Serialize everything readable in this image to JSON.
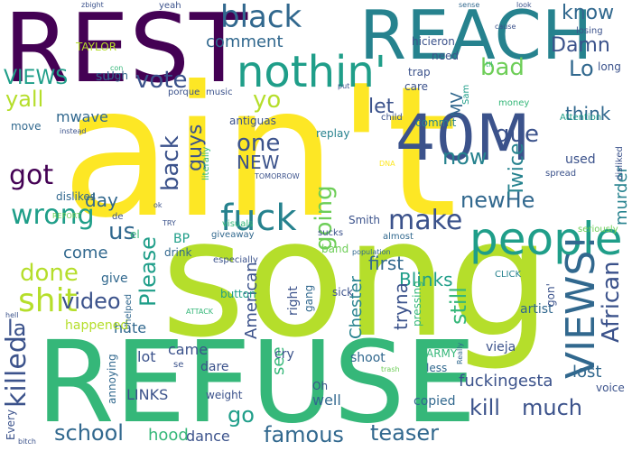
{
  "palette": {
    "purple": "#440154",
    "indigo": "#3b528b",
    "slate": "#31688e",
    "teal": "#26828e",
    "sea": "#1f9e89",
    "green": "#35b779",
    "lime": "#6ece58",
    "chartreuse": "#b5de2b",
    "yellow": "#fde725",
    "olive": "#d8e219"
  },
  "words": [
    {
      "text": "ain't",
      "color": "#fde725"
    },
    {
      "text": "song",
      "color": "#b5de2b"
    },
    {
      "text": "REFUSE",
      "color": "#35b779"
    },
    {
      "text": "REST",
      "color": "#440154"
    },
    {
      "text": "REACH",
      "color": "#26828e"
    },
    {
      "text": "40M",
      "color": "#3b528b"
    },
    {
      "text": "nothin'",
      "color": "#1f9e89"
    },
    {
      "text": "people",
      "color": "#1f9e89"
    },
    {
      "text": "VIEWS!",
      "color": "#31688e"
    },
    {
      "text": "African",
      "color": "#3b528b"
    },
    {
      "text": "fuck",
      "color": "#26828e"
    },
    {
      "text": "black",
      "color": "#31688e"
    },
    {
      "text": "shit",
      "color": "#b5de2b"
    },
    {
      "text": "wrong",
      "color": "#1f9e89"
    },
    {
      "text": "make",
      "color": "#3b528b"
    },
    {
      "text": "killed",
      "color": "#3b528b"
    },
    {
      "text": "done",
      "color": "#b5de2b"
    },
    {
      "text": "school",
      "color": "#31688e"
    },
    {
      "text": "famous",
      "color": "#31688e"
    },
    {
      "text": "teaser",
      "color": "#31688e"
    },
    {
      "text": "kill",
      "color": "#3b528b"
    },
    {
      "text": "much",
      "color": "#3b528b"
    },
    {
      "text": "newHe",
      "color": "#31688e"
    },
    {
      "text": "going",
      "color": "#6ece58"
    },
    {
      "text": "back",
      "color": "#3b528b"
    },
    {
      "text": "guys",
      "color": "#3b528b"
    },
    {
      "text": "Please",
      "color": "#1f9e89"
    },
    {
      "text": "video",
      "color": "#3b528b"
    },
    {
      "text": "yall",
      "color": "#b5de2b"
    },
    {
      "text": "got",
      "color": "#440154"
    },
    {
      "text": "bad",
      "color": "#6ece58"
    },
    {
      "text": "vote",
      "color": "#3b528b"
    },
    {
      "text": "yo",
      "color": "#b5de2b"
    },
    {
      "text": "let",
      "color": "#3b528b"
    },
    {
      "text": "one",
      "color": "#3b528b"
    },
    {
      "text": "que",
      "color": "#3b528b"
    },
    {
      "text": "now",
      "color": "#26828e"
    },
    {
      "text": "Twice",
      "color": "#26828e"
    },
    {
      "text": "MV",
      "color": "#31688e"
    },
    {
      "text": "Lo",
      "color": "#31688e"
    },
    {
      "text": "Damn",
      "color": "#3b528b"
    },
    {
      "text": "know",
      "color": "#31688e"
    },
    {
      "text": "think",
      "color": "#31688e"
    },
    {
      "text": "murder",
      "color": "#26828e"
    },
    {
      "text": "VIEWS",
      "color": "#1f9e89"
    },
    {
      "text": "comment",
      "color": "#31688e"
    },
    {
      "text": "go",
      "color": "#1f9e89"
    },
    {
      "text": "la",
      "color": "#3b528b"
    },
    {
      "text": "us",
      "color": "#31688e"
    },
    {
      "text": "come",
      "color": "#31688e"
    },
    {
      "text": "day",
      "color": "#31688e"
    },
    {
      "text": "NEW",
      "color": "#3b528b"
    },
    {
      "text": "first",
      "color": "#31688e"
    },
    {
      "text": "still",
      "color": "#35b779"
    },
    {
      "text": "Blinks",
      "color": "#1f9e89"
    },
    {
      "text": "tryna",
      "color": "#3b528b"
    },
    {
      "text": "Chester",
      "color": "#26828e"
    },
    {
      "text": "American",
      "color": "#3b528b"
    },
    {
      "text": "see",
      "color": "#35b779"
    },
    {
      "text": "well",
      "color": "#31688e"
    },
    {
      "text": "lost",
      "color": "#31688e"
    },
    {
      "text": "fuckingesta",
      "color": "#3b528b"
    },
    {
      "text": "copied",
      "color": "#31688e"
    },
    {
      "text": "hate",
      "color": "#31688e"
    },
    {
      "text": "LINKS",
      "color": "#3b528b"
    },
    {
      "text": "hood",
      "color": "#35b779"
    },
    {
      "text": "dance",
      "color": "#3b528b"
    },
    {
      "text": "give",
      "color": "#31688e"
    },
    {
      "text": "came",
      "color": "#3b528b"
    },
    {
      "text": "lot",
      "color": "#3b528b"
    },
    {
      "text": "dare",
      "color": "#3b528b"
    },
    {
      "text": "shoot",
      "color": "#31688e"
    },
    {
      "text": "mwave",
      "color": "#31688e"
    },
    {
      "text": "happened",
      "color": "#b5de2b"
    },
    {
      "text": "right",
      "color": "#3b528b"
    },
    {
      "text": "gang",
      "color": "#31688e"
    },
    {
      "text": "TAYLOR",
      "color": "#b5de2b"
    },
    {
      "text": "Ugh",
      "color": "#31688e"
    },
    {
      "text": "su",
      "color": "#31688e"
    },
    {
      "text": "move",
      "color": "#31688e"
    },
    {
      "text": "antiguas",
      "color": "#3b528b"
    },
    {
      "text": "music",
      "color": "#3b528b"
    },
    {
      "text": "porque",
      "color": "#3b528b"
    },
    {
      "text": "hicieron",
      "color": "#3b528b"
    },
    {
      "text": "need",
      "color": "#3b528b"
    },
    {
      "text": "trap",
      "color": "#3b528b"
    },
    {
      "text": "care",
      "color": "#3b528b"
    },
    {
      "text": "losing",
      "color": "#3b528b"
    },
    {
      "text": "long",
      "color": "#3b528b"
    },
    {
      "text": "Attention",
      "color": "#1f9e89"
    },
    {
      "text": "used",
      "color": "#3b528b"
    },
    {
      "text": "disliked",
      "color": "#3b528b"
    },
    {
      "text": "seriously",
      "color": "#6ece58"
    },
    {
      "text": "spread",
      "color": "#3b528b"
    },
    {
      "text": "commit",
      "color": "#26828e"
    },
    {
      "text": "replay",
      "color": "#26828e"
    },
    {
      "text": "Sam",
      "color": "#1f9e89"
    },
    {
      "text": "dislikes",
      "color": "#31688e"
    },
    {
      "text": "BP",
      "color": "#1f9e89"
    },
    {
      "text": "drink",
      "color": "#31688e"
    },
    {
      "text": "band",
      "color": "#6ece58"
    },
    {
      "text": "sick",
      "color": "#3b528b"
    },
    {
      "text": "sucks",
      "color": "#3b528b"
    },
    {
      "text": "especially",
      "color": "#3b528b"
    },
    {
      "text": "almost",
      "color": "#31688e"
    },
    {
      "text": "giveaway",
      "color": "#31688e"
    },
    {
      "text": "visuals",
      "color": "#35b779"
    },
    {
      "text": "Smith",
      "color": "#3b528b"
    },
    {
      "text": "population",
      "color": "#31688e"
    },
    {
      "text": "artist",
      "color": "#31688e"
    },
    {
      "text": "button",
      "color": "#1f9e89"
    },
    {
      "text": "helped",
      "color": "#31688e"
    },
    {
      "text": "pressing",
      "color": "#35b779"
    },
    {
      "text": "gon'",
      "color": "#3b528b"
    },
    {
      "text": "CLICK",
      "color": "#26828e"
    },
    {
      "text": "ARMY",
      "color": "#35b779"
    },
    {
      "text": "vieja",
      "color": "#3b528b"
    },
    {
      "text": "cry",
      "color": "#3b528b"
    },
    {
      "text": "Oh",
      "color": "#3b528b"
    },
    {
      "text": "less",
      "color": "#31688e"
    },
    {
      "text": "Really",
      "color": "#31688e"
    },
    {
      "text": "voice",
      "color": "#3b528b"
    },
    {
      "text": "weight",
      "color": "#3b528b"
    },
    {
      "text": "annoying",
      "color": "#31688e"
    },
    {
      "text": "Every",
      "color": "#3b528b"
    },
    {
      "text": "hell",
      "color": "#3b528b"
    },
    {
      "text": "bitch",
      "color": "#3b528b"
    },
    {
      "text": "trash",
      "color": "#6ece58"
    },
    {
      "text": "ATTACK",
      "color": "#35b779"
    },
    {
      "text": "se",
      "color": "#3b528b"
    },
    {
      "text": "literally",
      "color": "#35b779"
    },
    {
      "text": "TOMORROW",
      "color": "#3b528b"
    },
    {
      "text": "TRY",
      "color": "#3b528b"
    },
    {
      "text": "ok",
      "color": "#3b528b"
    },
    {
      "text": "el",
      "color": "#35b779"
    },
    {
      "text": "de",
      "color": "#3b528b"
    },
    {
      "text": "instead",
      "color": "#3b528b"
    },
    {
      "text": "REPORT",
      "color": "#6ece58"
    },
    {
      "text": "DNA",
      "color": "#fde725"
    },
    {
      "text": "child",
      "color": "#3b528b"
    },
    {
      "text": "money",
      "color": "#35b779"
    },
    {
      "text": "yeah",
      "color": "#3b528b"
    },
    {
      "text": "zbight",
      "color": "#3b528b"
    },
    {
      "text": "con",
      "color": "#35b779"
    },
    {
      "text": "sense",
      "color": "#31688e"
    },
    {
      "text": "look",
      "color": "#3b528b"
    },
    {
      "text": "cause",
      "color": "#3b528b"
    },
    {
      "text": "til",
      "color": "#35b779"
    },
    {
      "text": "put",
      "color": "#3b528b"
    }
  ]
}
